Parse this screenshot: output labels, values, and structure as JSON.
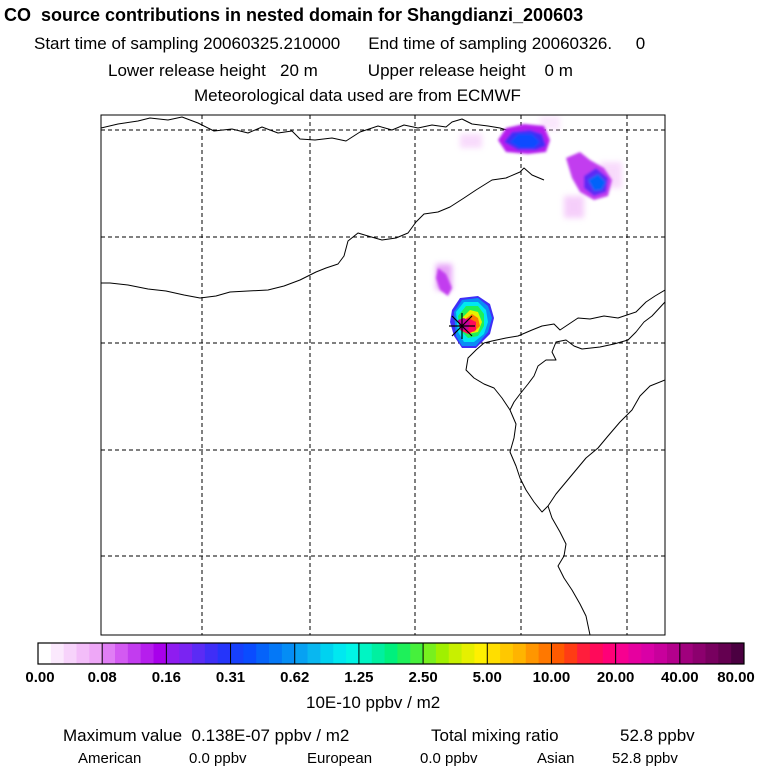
{
  "header": {
    "title": "CO  source contributions in nested domain for Shangdianzi_200603",
    "start_label": "Start time of sampling",
    "start_value": "20060325.210000",
    "end_label": "End time of sampling",
    "end_value": "20060326.     0",
    "lower_label": "Lower release height",
    "lower_value": "20 m",
    "upper_label": "Upper release height",
    "upper_value": "0 m",
    "met_text": "Meteorological data used are from ECMWF"
  },
  "colorbar": {
    "tick_labels": [
      "0.00",
      "0.08",
      "0.16",
      "0.31",
      "0.62",
      "1.25",
      "2.50",
      "5.00",
      "10.00",
      "20.00",
      "40.00",
      "80.00"
    ],
    "colors": [
      "#ffffff",
      "#fbe9fd",
      "#f7d3fb",
      "#f3bdf9",
      "#eea7f7",
      "#e07ef5",
      "#d35af2",
      "#c23cef",
      "#b61eed",
      "#a800eb",
      "#8f1cf0",
      "#7a24f2",
      "#5b2bf5",
      "#3f2ef7",
      "#2535fa",
      "#1740fc",
      "#0a4cff",
      "#0563fa",
      "#0478f7",
      "#058df5",
      "#07a1f2",
      "#09b7f0",
      "#00d2f0",
      "#00e8f0",
      "#00f5e6",
      "#00f5c3",
      "#00f0a0",
      "#00f07d",
      "#1ef05a",
      "#46f03c",
      "#78f01e",
      "#a0f000",
      "#c8f000",
      "#e6f000",
      "#fff000",
      "#ffde00",
      "#ffc800",
      "#ffb400",
      "#ff9600",
      "#ff7800",
      "#ff5a00",
      "#ff3c14",
      "#ff1e3c",
      "#ff0a5a",
      "#ff0078",
      "#f70090",
      "#e6009f",
      "#d900a6",
      "#c8009c",
      "#b4008c",
      "#a0007d",
      "#8c006e",
      "#78005f",
      "#640050",
      "#4b0041"
    ],
    "unit": "10E-10 ppbv / m2"
  },
  "map": {
    "receptor_marker": "star-icon",
    "plumes": [
      {
        "name": "source-plume-main",
        "level": "high"
      },
      {
        "name": "plume-north",
        "level": "medium"
      },
      {
        "name": "plume-northeast",
        "level": "medium"
      },
      {
        "name": "plume-north-faint",
        "level": "low"
      }
    ]
  },
  "stats": {
    "max_label": "Maximum value",
    "max_value": "0.138E-07 ppbv / m2",
    "total_label": "Total mixing ratio",
    "total_value": "52.8 ppbv",
    "american_label": "American",
    "american_value": "0.0 ppbv",
    "european_label": "European",
    "european_value": "0.0 ppbv",
    "asian_label": "Asian",
    "asian_value": "52.8 ppbv"
  }
}
